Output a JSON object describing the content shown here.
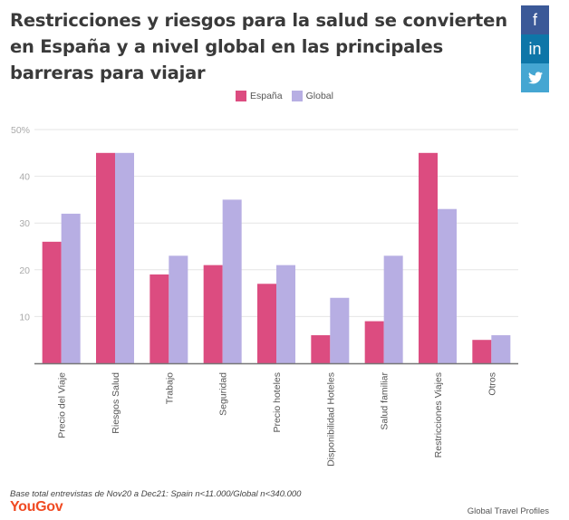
{
  "title": "Restricciones y riesgos para la salud se convierten en España y a nivel global en las principales barreras para viajar",
  "social": {
    "facebook": {
      "icon": "facebook-icon",
      "glyph": "f"
    },
    "linkedin": {
      "icon": "linkedin-icon",
      "glyph": "in"
    },
    "twitter": {
      "icon": "twitter-icon",
      "glyph": "🐦"
    }
  },
  "legend": [
    {
      "label": "España",
      "color": "#dc4c80"
    },
    {
      "label": "Global",
      "color": "#b7aee3"
    }
  ],
  "chart_data": {
    "type": "bar",
    "title": "Restricciones y riesgos para la salud se convierten en España y a nivel global en las principales barreras para viajar",
    "xlabel": "",
    "ylabel": "",
    "ylim": [
      0,
      50
    ],
    "yticks": [
      10,
      20,
      30,
      40,
      50
    ],
    "ytick_labels": [
      "10",
      "20",
      "30",
      "40",
      "50%"
    ],
    "grid": true,
    "legend_position": "top-center",
    "categories": [
      "Precio del Viaje",
      "Riesgos Salud",
      "Trabajo",
      "Seguridad",
      "Precio hoteles",
      "Disponibilidad Hoteles",
      "Salud familiar",
      "Restricciones Viajes",
      "Otros"
    ],
    "series": [
      {
        "name": "España",
        "color": "#dc4c80",
        "values": [
          26,
          45,
          19,
          21,
          17,
          6,
          9,
          45,
          5
        ]
      },
      {
        "name": "Global",
        "color": "#b7aee3",
        "values": [
          32,
          45,
          23,
          35,
          21,
          14,
          23,
          33,
          6
        ]
      }
    ]
  },
  "footer": {
    "note": "Base total entrevistas de Nov20 a Dec21: Spain n<11.000/Global n<340.000",
    "logo": "YouGov",
    "source": "Global Travel Profiles"
  }
}
